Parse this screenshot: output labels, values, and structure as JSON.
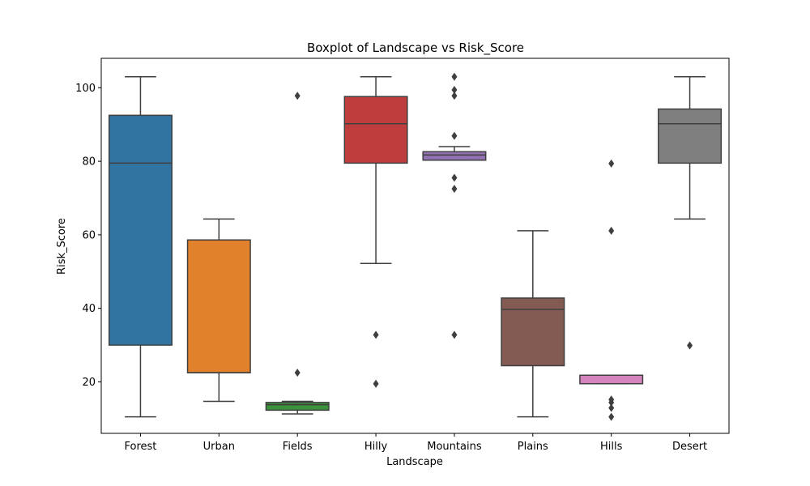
{
  "chart_data": {
    "type": "box",
    "title": "Boxplot of Landscape vs Risk_Score",
    "xlabel": "Landscape",
    "ylabel": "Risk_Score",
    "ylim": [
      6,
      108
    ],
    "yticks": [
      20,
      40,
      60,
      80,
      100
    ],
    "grid": false,
    "legend": "none",
    "categories": [
      "Forest",
      "Urban",
      "Fields",
      "Hilly",
      "Mountains",
      "Plains",
      "Hills",
      "Desert"
    ],
    "boxes": [
      {
        "category": "Forest",
        "color": "#3274a1",
        "whisker_low": 10.5,
        "q1": 30,
        "median": 79.5,
        "q3": 92.5,
        "whisker_high": 103,
        "outliers": []
      },
      {
        "category": "Urban",
        "color": "#e1812c",
        "whisker_low": 14.7,
        "q1": 22.5,
        "median": 22.5,
        "q3": 58.6,
        "whisker_high": 64.3,
        "outliers": []
      },
      {
        "category": "Fields",
        "color": "#3a923a",
        "whisker_low": 11.3,
        "q1": 12.3,
        "median": 13.8,
        "q3": 14.4,
        "whisker_high": 14.7,
        "outliers": [
          22.5,
          97.8
        ]
      },
      {
        "category": "Hilly",
        "color": "#c03d3e",
        "whisker_low": 52.2,
        "q1": 79.5,
        "median": 90.2,
        "q3": 97.6,
        "whisker_high": 103,
        "outliers": [
          19.5,
          32.8
        ]
      },
      {
        "category": "Mountains",
        "color": "#9372b2",
        "whisker_low": 80.3,
        "q1": 80.3,
        "median": 81.7,
        "q3": 82.6,
        "whisker_high": 84,
        "outliers": [
          32.8,
          72.5,
          75.5,
          86.9,
          97.8,
          99.4,
          103
        ]
      },
      {
        "category": "Plains",
        "color": "#845b53",
        "whisker_low": 10.5,
        "q1": 24.4,
        "median": 39.7,
        "q3": 42.8,
        "whisker_high": 61.1,
        "outliers": []
      },
      {
        "category": "Hills",
        "color": "#d684bd",
        "whisker_low": 19.5,
        "q1": 19.5,
        "median": 21.8,
        "q3": 21.8,
        "whisker_high": 21.8,
        "outliers": [
          10.5,
          12.9,
          14.4,
          15.2,
          61.1,
          79.4
        ]
      },
      {
        "category": "Desert",
        "color": "#7f7f7f",
        "whisker_low": 64.3,
        "q1": 79.5,
        "median": 90.2,
        "q3": 94.2,
        "whisker_high": 103,
        "outliers": [
          29.9
        ]
      }
    ]
  }
}
